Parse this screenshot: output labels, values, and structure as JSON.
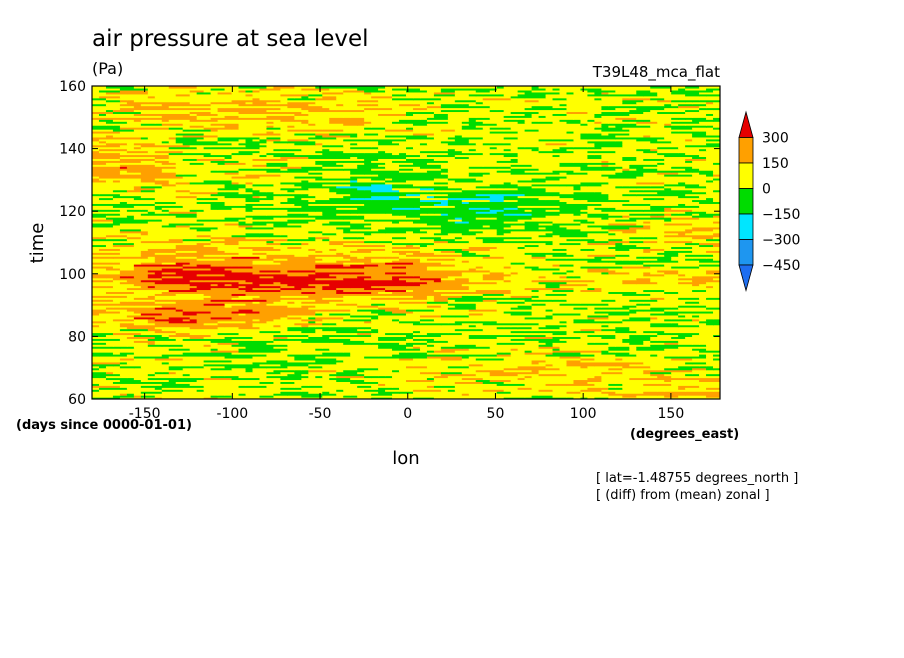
{
  "chart_data": {
    "type": "heatmap",
    "title": "air pressure at sea level",
    "units": "(Pa)",
    "run_label": "T39L48_mca_flat",
    "xlabel": "lon",
    "xunits": "(degrees_east)",
    "ylabel": "time",
    "yunits": "(days since 0000-01-01)",
    "xlim": [
      -180,
      178
    ],
    "ylim": [
      60,
      160
    ],
    "xticks": [
      -150,
      -100,
      -50,
      0,
      50,
      100,
      150
    ],
    "yticks": [
      60,
      80,
      100,
      120,
      140,
      160
    ],
    "colorbar": {
      "levels": [
        -450,
        -300,
        -150,
        0,
        150,
        300
      ],
      "colors": [
        "#1e6ef0",
        "#1e96f0",
        "#00e6ff",
        "#00dc00",
        "#ffff00",
        "#ffa000",
        "#e60000"
      ],
      "extend": "both"
    },
    "notes": [
      "[ lat=-1.48755 degrees_north ]",
      "[ (diff) from (mean) zonal ]"
    ],
    "grid": false
  }
}
